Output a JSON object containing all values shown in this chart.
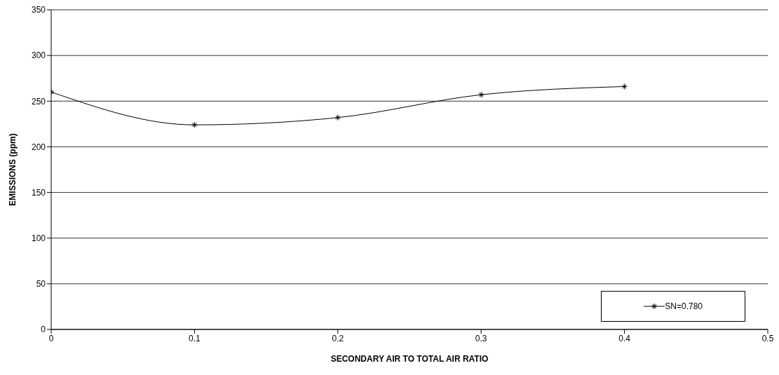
{
  "chart_data": {
    "type": "line",
    "xlabel": "SECONDARY AIR TO TOTAL AIR RATIO",
    "ylabel": "EMISSIONS (ppm)",
    "x": [
      0,
      0.1,
      0.2,
      0.3,
      0.4
    ],
    "series": [
      {
        "name": "SN=0.780",
        "color": "#000000",
        "values": [
          260,
          224,
          232,
          257,
          266
        ]
      }
    ],
    "xlim": [
      0,
      0.5
    ],
    "xticks": [
      0,
      0.1,
      0.2,
      0.3,
      0.4,
      0.5
    ],
    "ylim": [
      0,
      350
    ],
    "yticks": [
      0,
      50,
      100,
      150,
      200,
      250,
      300,
      350
    ],
    "grid": "y",
    "legend": "bottom right",
    "marker": "cross",
    "line_style": "solid"
  }
}
